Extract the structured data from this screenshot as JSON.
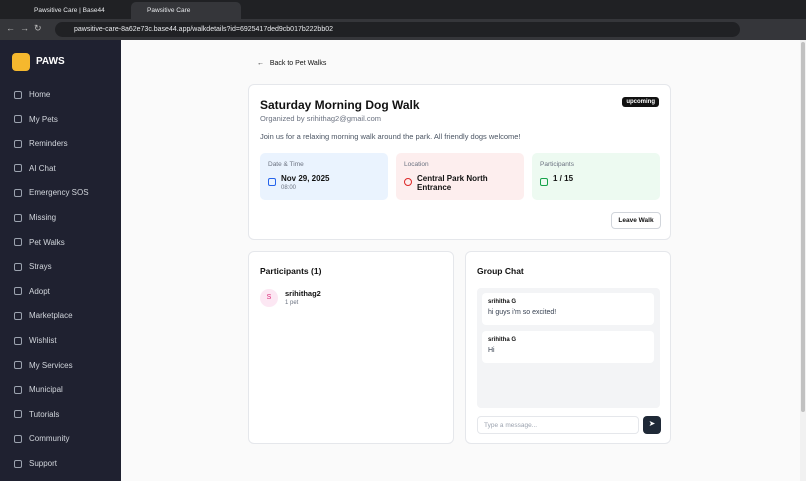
{
  "browser": {
    "tabs": [
      "Pawsitive Care | Base44",
      "Pawsitive Care"
    ],
    "url": "pawsitive-care-8a62e73c.base44.app/walkdetails?id=6925417ded9cb017b222bb02"
  },
  "sidebar": {
    "brand": "PAWS",
    "nav": [
      "Home",
      "My Pets",
      "Reminders",
      "AI Chat",
      "Emergency SOS",
      "Missing",
      "Pet Walks",
      "Strays",
      "Adopt",
      "Marketplace",
      "Wishlist",
      "My Services",
      "Municipal",
      "Tutorials",
      "Community",
      "Support"
    ]
  },
  "walk": {
    "back": "Back to Pet Walks",
    "title": "Saturday Morning Dog Walk",
    "organizer": "Organized by srihithag2@gmail.com",
    "status": "upcoming",
    "description": "Join us for a relaxing morning walk around the park. All friendly dogs welcome!",
    "info": [
      {
        "label": "Date & Time",
        "value": "Nov 29, 2025",
        "sub": "08:00"
      },
      {
        "label": "Location",
        "value": "Central Park North Entrance"
      },
      {
        "label": "Participants",
        "value": "1 / 15"
      }
    ],
    "leave": "Leave Walk"
  },
  "participants": {
    "title": "Participants (1)",
    "items": [
      {
        "initial": "S",
        "name": "srihithag2",
        "sub": "1 pet"
      }
    ]
  },
  "chat": {
    "title": "Group Chat",
    "messages": [
      {
        "author": "srihitha G",
        "text": "hi guys i'm so excited!"
      },
      {
        "author": "srihitha G",
        "text": "Hi"
      }
    ],
    "placeholder": "Type a message..."
  }
}
